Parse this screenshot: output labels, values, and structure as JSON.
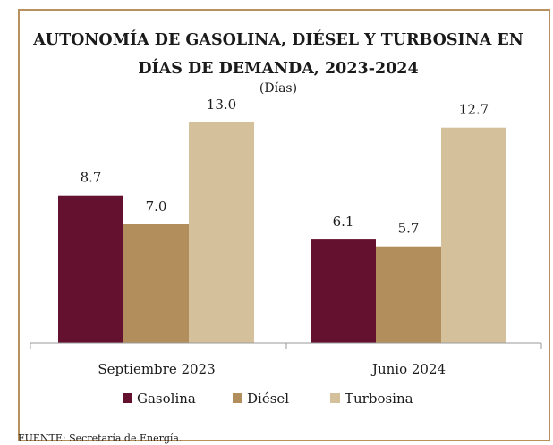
{
  "chart_data": {
    "type": "bar",
    "title_lines": [
      "AUTONOMÍA DE GASOLINA, DIÉSEL Y TURBOSINA EN",
      "DÍAS DE DEMANDA, 2023-2024"
    ],
    "subtitle": "(Días)",
    "categories": [
      "Septiembre 2023",
      "Junio 2024"
    ],
    "series": [
      {
        "name": "Gasolina",
        "values": [
          8.7,
          6.1
        ],
        "labels": [
          "8.7",
          "6.1"
        ],
        "color": "#64112f"
      },
      {
        "name": "Diésel",
        "values": [
          7.0,
          5.7
        ],
        "labels": [
          "7.0",
          "5.7"
        ],
        "color": "#b38e5d"
      },
      {
        "name": "Turbosina",
        "values": [
          13.0,
          12.7
        ],
        "labels": [
          "13.0",
          "12.7"
        ],
        "color": "#d4c19c"
      }
    ],
    "ylim": [
      0,
      13.0
    ],
    "grid": false,
    "legend_position": "bottom"
  },
  "source": "FUENTE: Secretaría de Energía."
}
